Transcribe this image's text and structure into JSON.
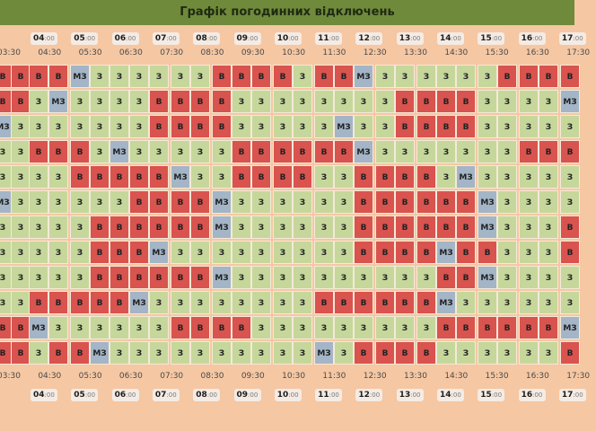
{
  "header": {
    "title": "Графік погодинних відключень"
  },
  "time_header": {
    "hours": [
      "04:00",
      "05:00",
      "06:00",
      "07:00",
      "08:00",
      "09:00",
      "10:00",
      "11:00",
      "12:00",
      "13:00",
      "14:00",
      "15:00",
      "16:00",
      "17:00"
    ],
    "half_hours": [
      "03:30",
      "04:30",
      "05:30",
      "06:30",
      "07:30",
      "08:30",
      "09:30",
      "10:30",
      "11:30",
      "12:30",
      "13:30",
      "14:30",
      "15:30",
      "16:30",
      "17:30"
    ]
  },
  "time_footer": {
    "hours": [
      "04:00",
      "05:00",
      "06:00",
      "07:00",
      "08:00",
      "09:00",
      "10:00",
      "11:00",
      "12:00",
      "13:00",
      "14:00",
      "15:00",
      "16:00",
      "17:00"
    ],
    "half_hours": [
      "03:30",
      "04:30",
      "05:30",
      "06:30",
      "07:30",
      "08:30",
      "09:30",
      "10:30",
      "11:30",
      "12:30",
      "13:30",
      "14:30",
      "15:30",
      "16:30",
      "17:30"
    ]
  },
  "legend_codes": {
    "off": "В",
    "on": "З",
    "maybe": "МЗ"
  },
  "colors": {
    "off": "#d9534f",
    "on": "#c6d79b",
    "maybe": "#a3b5c7",
    "background": "#f5c7a3",
    "title_bar": "#6f8a3a"
  },
  "rows": [
    [
      "В",
      "В",
      "В",
      "В",
      "МЗ",
      "З",
      "З",
      "З",
      "З",
      "З",
      "З",
      "В",
      "В",
      "В",
      "В",
      "З",
      "В",
      "В",
      "МЗ",
      "З",
      "З",
      "З",
      "З",
      "З",
      "З",
      "В",
      "В",
      "В",
      "В"
    ],
    [
      "В",
      "В",
      "З",
      "МЗ",
      "З",
      "З",
      "З",
      "З",
      "В",
      "В",
      "В",
      "В",
      "З",
      "З",
      "З",
      "З",
      "З",
      "З",
      "З",
      "З",
      "В",
      "В",
      "В",
      "В",
      "З",
      "З",
      "З",
      "З",
      "МЗ"
    ],
    [
      "МЗ",
      "З",
      "З",
      "З",
      "З",
      "З",
      "З",
      "З",
      "В",
      "В",
      "В",
      "В",
      "З",
      "З",
      "З",
      "З",
      "З",
      "МЗ",
      "З",
      "З",
      "В",
      "В",
      "В",
      "В",
      "З",
      "З",
      "З",
      "З",
      "З"
    ],
    [
      "З",
      "З",
      "В",
      "В",
      "В",
      "З",
      "МЗ",
      "З",
      "З",
      "З",
      "З",
      "З",
      "В",
      "В",
      "В",
      "В",
      "В",
      "В",
      "МЗ",
      "З",
      "З",
      "З",
      "З",
      "З",
      "З",
      "З",
      "В",
      "В",
      "В"
    ],
    [
      "З",
      "З",
      "З",
      "З",
      "В",
      "В",
      "В",
      "В",
      "В",
      "МЗ",
      "З",
      "З",
      "В",
      "В",
      "В",
      "В",
      "З",
      "З",
      "В",
      "В",
      "В",
      "В",
      "З",
      "МЗ",
      "З",
      "З",
      "З",
      "З",
      "З"
    ],
    [
      "МЗ",
      "З",
      "З",
      "З",
      "З",
      "З",
      "З",
      "В",
      "В",
      "В",
      "В",
      "МЗ",
      "З",
      "З",
      "З",
      "З",
      "З",
      "З",
      "В",
      "В",
      "В",
      "В",
      "В",
      "В",
      "МЗ",
      "З",
      "З",
      "З",
      "З"
    ],
    [
      "З",
      "З",
      "З",
      "З",
      "З",
      "В",
      "В",
      "В",
      "В",
      "В",
      "В",
      "МЗ",
      "З",
      "З",
      "З",
      "З",
      "З",
      "З",
      "В",
      "В",
      "В",
      "В",
      "В",
      "В",
      "МЗ",
      "З",
      "З",
      "З",
      "В"
    ],
    [
      "З",
      "З",
      "З",
      "З",
      "З",
      "В",
      "В",
      "В",
      "МЗ",
      "З",
      "З",
      "З",
      "З",
      "З",
      "З",
      "З",
      "З",
      "З",
      "В",
      "В",
      "В",
      "В",
      "МЗ",
      "В",
      "В",
      "З",
      "З",
      "З",
      "В"
    ],
    [
      "З",
      "З",
      "З",
      "З",
      "З",
      "В",
      "В",
      "В",
      "В",
      "В",
      "В",
      "МЗ",
      "З",
      "З",
      "З",
      "З",
      "З",
      "З",
      "З",
      "З",
      "З",
      "З",
      "В",
      "В",
      "МЗ",
      "З",
      "З",
      "З",
      "З"
    ],
    [
      "З",
      "З",
      "В",
      "В",
      "В",
      "В",
      "В",
      "МЗ",
      "З",
      "З",
      "З",
      "З",
      "З",
      "З",
      "З",
      "З",
      "В",
      "В",
      "В",
      "В",
      "В",
      "В",
      "МЗ",
      "З",
      "З",
      "З",
      "З",
      "З",
      "З"
    ],
    [
      "В",
      "В",
      "МЗ",
      "З",
      "З",
      "З",
      "З",
      "З",
      "З",
      "В",
      "В",
      "В",
      "В",
      "З",
      "З",
      "З",
      "З",
      "З",
      "З",
      "З",
      "З",
      "З",
      "В",
      "В",
      "В",
      "В",
      "В",
      "В",
      "МЗ"
    ],
    [
      "В",
      "В",
      "З",
      "В",
      "В",
      "МЗ",
      "З",
      "З",
      "З",
      "З",
      "З",
      "З",
      "З",
      "З",
      "З",
      "З",
      "МЗ",
      "З",
      "В",
      "В",
      "В",
      "В",
      "З",
      "З",
      "З",
      "З",
      "З",
      "З",
      "В"
    ]
  ]
}
